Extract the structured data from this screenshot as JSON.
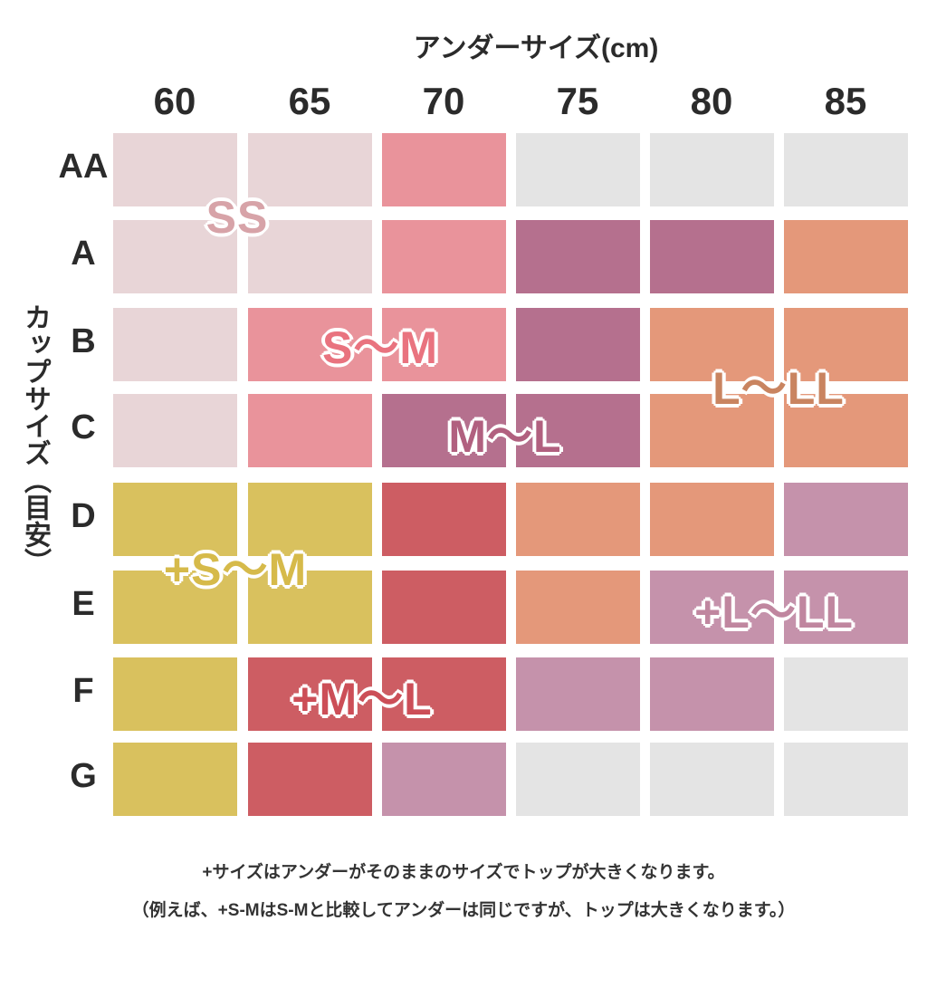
{
  "chart_data": {
    "type": "table",
    "title": "アンダーサイズ(cm)",
    "ylabel": "カップサイズ（目安）",
    "columns": [
      "60",
      "65",
      "70",
      "75",
      "80",
      "85"
    ],
    "rows": [
      "AA",
      "A",
      "B",
      "C",
      "D",
      "E",
      "F",
      "G"
    ],
    "cells": [
      [
        "SS",
        "SS",
        "S〜M",
        null,
        null,
        null
      ],
      [
        "SS",
        "SS",
        "S〜M",
        "M〜L",
        "M〜L",
        "L〜LL"
      ],
      [
        "SS",
        "S〜M",
        "S〜M",
        "M〜L",
        "L〜LL",
        "L〜LL"
      ],
      [
        "SS",
        "S〜M",
        "M〜L",
        "M〜L",
        "L〜LL",
        "L〜LL"
      ],
      [
        "+S〜M",
        "+S〜M",
        "+M〜L",
        "L〜LL",
        "L〜LL",
        "+L〜LL"
      ],
      [
        "+S〜M",
        "+S〜M",
        "+M〜L",
        "L〜LL",
        "+L〜LL",
        "+L〜LL"
      ],
      [
        "+S〜M",
        "+M〜L",
        "+M〜L",
        "+L〜LL",
        "+L〜LL",
        null
      ],
      [
        "+S〜M",
        "+M〜L",
        "+L〜LL",
        null,
        null,
        null
      ]
    ],
    "sizes": [
      {
        "name": "SS",
        "color": "#e8d5d7",
        "text_color": "#d7a3a8"
      },
      {
        "name": "S〜M",
        "color": "#e9939b",
        "text_color": "#e9737f"
      },
      {
        "name": "M〜L",
        "color": "#b5708e",
        "text_color": "#b1607f"
      },
      {
        "name": "L〜LL",
        "color": "#e4987a",
        "text_color": "#c98460"
      },
      {
        "name": "+S〜M",
        "color": "#d9c15e",
        "text_color": "#d6ba4a"
      },
      {
        "name": "+M〜L",
        "color": "#cd5d63",
        "text_color": "#cc4e57"
      },
      {
        "name": "+L〜LL",
        "color": "#c592ab",
        "text_color": "#c0869f"
      }
    ],
    "empty_color": "#e4e4e4"
  },
  "notes": [
    "+サイズはアンダーがそのままのサイズでトップが大きくなります。",
    "（例えば、+S-MはS-Mと比較してアンダーは同じですが、トップは大きくなります。）"
  ]
}
